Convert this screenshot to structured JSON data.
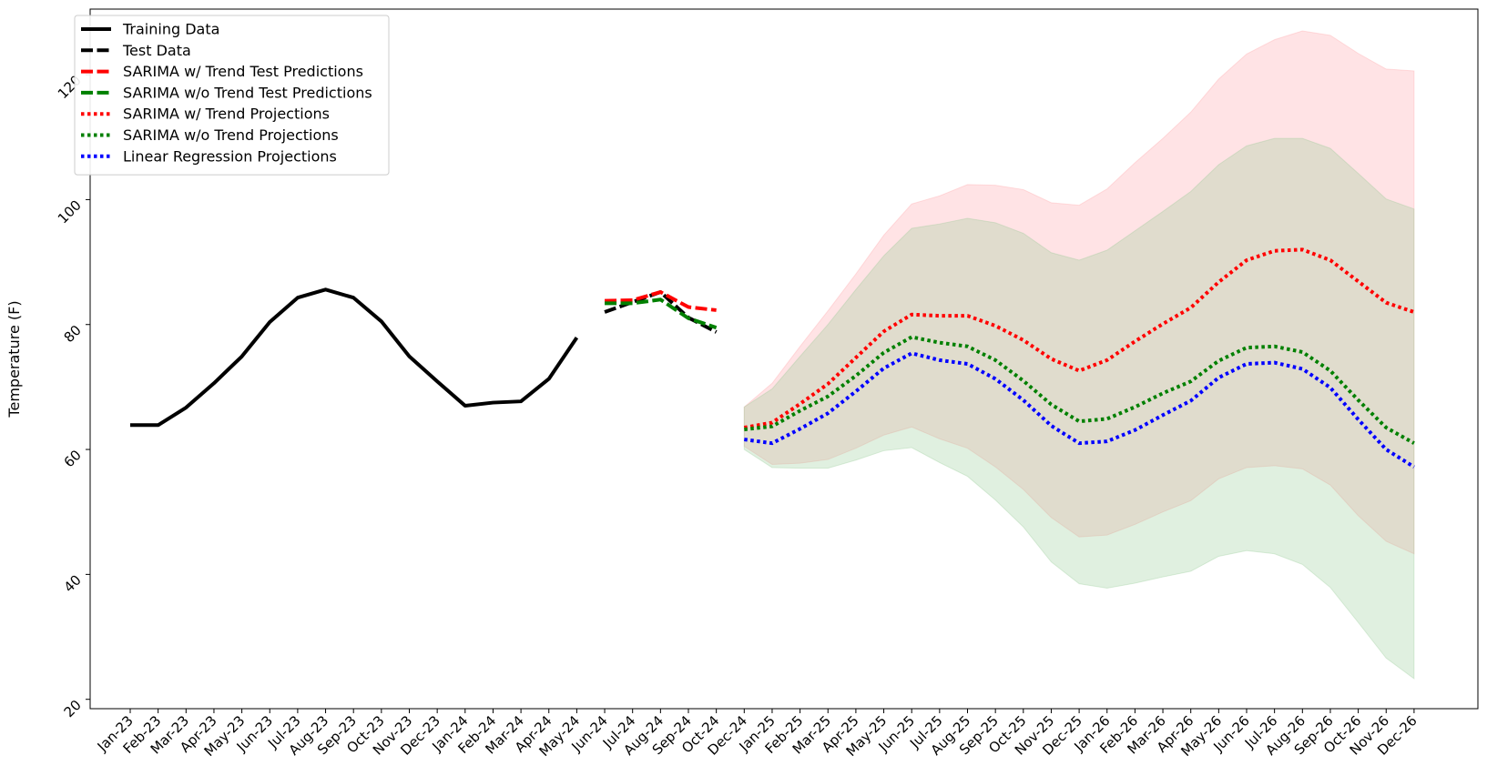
{
  "chart_data": {
    "type": "line",
    "title": "",
    "xlabel": "",
    "ylabel": "Temperature (F)",
    "ylim": [
      18.5,
      130.5
    ],
    "yticks": [
      20,
      40,
      60,
      80,
      100,
      120
    ],
    "grid": false,
    "legend_position": "top-left",
    "x_ticks": [
      "Jan-23",
      "Feb-23",
      "Mar-23",
      "Apr-23",
      "May-23",
      "Jun-23",
      "Jul-23",
      "Aug-23",
      "Sep-23",
      "Oct-23",
      "Nov-23",
      "Dec-23",
      "Jan-24",
      "Feb-24",
      "Mar-24",
      "Apr-24",
      "May-24",
      "Jun-24",
      "Jul-24",
      "Aug-24",
      "Sep-24",
      "Oct-24",
      "Dec-24",
      "Jan-25",
      "Feb-25",
      "Mar-25",
      "Apr-25",
      "May-25",
      "Jun-25",
      "Jul-25",
      "Aug-25",
      "Sep-25",
      "Oct-25",
      "Nov-25",
      "Dec-25",
      "Jan-26",
      "Feb-26",
      "Mar-26",
      "Apr-26",
      "May-26",
      "Jun-26",
      "Jul-26",
      "Aug-26",
      "Sep-26",
      "Oct-26",
      "Nov-26",
      "Dec-26"
    ],
    "series": [
      {
        "name": "Training Data",
        "color": "#000000",
        "style": "solid",
        "x": [
          "Jan-23",
          "Feb-23",
          "Mar-23",
          "Apr-23",
          "May-23",
          "Jun-23",
          "Jul-23",
          "Aug-23",
          "Sep-23",
          "Oct-23",
          "Nov-23",
          "Dec-23",
          "Jan-24",
          "Feb-24",
          "Mar-24",
          "Apr-24",
          "May-24"
        ],
        "values": [
          63.9,
          63.9,
          66.7,
          70.6,
          74.9,
          80.4,
          84.3,
          85.6,
          84.3,
          80.5,
          74.9,
          70.9,
          67.0,
          67.5,
          67.7,
          71.3,
          77.9
        ]
      },
      {
        "name": "Test Data",
        "color": "#000000",
        "style": "dashed",
        "x": [
          "Jun-24",
          "Jul-24",
          "Aug-24",
          "Sep-24",
          "Oct-24"
        ],
        "values": [
          82.0,
          83.6,
          85.2,
          81.1,
          78.8
        ]
      },
      {
        "name": "SARIMA w/ Trend Test Predictions",
        "color": "#ff0000",
        "style": "dashed",
        "x": [
          "Jun-24",
          "Jul-24",
          "Aug-24",
          "Sep-24",
          "Oct-24"
        ],
        "values": [
          83.8,
          83.9,
          85.2,
          82.8,
          82.3
        ]
      },
      {
        "name": "SARIMA w/o Trend Test Predictions",
        "color": "#008000",
        "style": "dashed",
        "x": [
          "Jun-24",
          "Jul-24",
          "Aug-24",
          "Sep-24",
          "Oct-24"
        ],
        "values": [
          83.4,
          83.4,
          84.0,
          81.0,
          79.5
        ]
      },
      {
        "name": "SARIMA w/ Trend Projections",
        "color": "#ff0000",
        "style": "dotted",
        "x": [
          "Dec-24",
          "Jan-25",
          "Feb-25",
          "Mar-25",
          "Apr-25",
          "May-25",
          "Jun-25",
          "Jul-25",
          "Aug-25",
          "Sep-25",
          "Oct-25",
          "Nov-25",
          "Dec-25",
          "Jan-26",
          "Feb-26",
          "Mar-26",
          "Apr-26",
          "May-26",
          "Jun-26",
          "Jul-26",
          "Aug-26",
          "Sep-26",
          "Oct-26",
          "Nov-26",
          "Dec-26"
        ],
        "values": [
          63.5,
          64.3,
          67.3,
          70.5,
          74.7,
          78.9,
          81.6,
          81.4,
          81.4,
          79.8,
          77.5,
          74.5,
          72.6,
          74.3,
          77.3,
          80.1,
          82.7,
          86.8,
          90.3,
          91.8,
          92.0,
          90.3,
          86.9,
          83.5,
          82.0
        ],
        "ci_color": "#ff9aa0",
        "ci_lower": [
          60.5,
          57.6,
          57.8,
          58.4,
          60.2,
          62.3,
          63.6,
          61.7,
          60.2,
          57.2,
          53.6,
          49.1,
          46.0,
          46.3,
          48.0,
          50.0,
          51.8,
          55.3,
          57.1,
          57.4,
          56.9,
          54.3,
          49.4,
          45.3,
          43.3
        ],
        "ci_upper": [
          66.8,
          70.6,
          76.5,
          82.2,
          88.1,
          94.3,
          99.3,
          100.6,
          102.4,
          102.3,
          101.6,
          99.5,
          99.1,
          101.7,
          105.9,
          109.8,
          114.0,
          119.3,
          123.3,
          125.6,
          127.0,
          126.3,
          123.4,
          120.9,
          120.6
        ]
      },
      {
        "name": "SARIMA w/o Trend Projections",
        "color": "#008000",
        "style": "dotted",
        "x": [
          "Dec-24",
          "Jan-25",
          "Feb-25",
          "Mar-25",
          "Apr-25",
          "May-25",
          "Jun-25",
          "Jul-25",
          "Aug-25",
          "Sep-25",
          "Oct-25",
          "Nov-25",
          "Dec-25",
          "Jan-26",
          "Feb-26",
          "Mar-26",
          "Apr-26",
          "May-26",
          "Jun-26",
          "Jul-26",
          "Aug-26",
          "Sep-26",
          "Oct-26",
          "Nov-26",
          "Dec-26"
        ],
        "values": [
          63.2,
          63.7,
          66.2,
          68.5,
          71.8,
          75.5,
          78.0,
          77.1,
          76.5,
          74.3,
          71.0,
          67.2,
          64.5,
          64.9,
          66.8,
          69.0,
          70.9,
          74.2,
          76.3,
          76.5,
          75.6,
          72.6,
          67.9,
          63.5,
          61.0
        ],
        "ci_color": "#90c890",
        "ci_lower": [
          60.0,
          57.1,
          57.0,
          57.0,
          58.3,
          59.8,
          60.3,
          57.9,
          55.7,
          51.9,
          47.6,
          42.0,
          38.5,
          37.8,
          38.6,
          39.6,
          40.5,
          42.9,
          43.8,
          43.3,
          41.6,
          37.9,
          32.3,
          26.6,
          23.3
        ],
        "ci_upper": [
          66.8,
          69.7,
          74.9,
          80.0,
          85.6,
          91.0,
          95.4,
          96.1,
          97.0,
          96.3,
          94.6,
          91.5,
          90.3,
          91.9,
          95.0,
          98.1,
          101.3,
          105.6,
          108.6,
          109.8,
          109.8,
          108.2,
          104.2,
          100.1,
          98.5
        ]
      },
      {
        "name": "Linear Regression Projections",
        "color": "#0000ff",
        "style": "dotted",
        "x": [
          "Dec-24",
          "Jan-25",
          "Feb-25",
          "Mar-25",
          "Apr-25",
          "May-25",
          "Jun-25",
          "Jul-25",
          "Aug-25",
          "Sep-25",
          "Oct-25",
          "Nov-25",
          "Dec-25",
          "Jan-26",
          "Feb-26",
          "Mar-26",
          "Apr-26",
          "May-26",
          "Jun-26",
          "Jul-26",
          "Aug-26",
          "Sep-26",
          "Oct-26",
          "Nov-26",
          "Dec-26"
        ],
        "values": [
          61.6,
          61.0,
          63.3,
          65.8,
          69.3,
          73.0,
          75.4,
          74.3,
          73.7,
          71.3,
          67.9,
          63.8,
          61.0,
          61.3,
          63.1,
          65.5,
          67.8,
          71.5,
          73.7,
          73.9,
          72.9,
          69.9,
          64.8,
          60.0,
          57.2
        ]
      }
    ],
    "legend": [
      {
        "label": "Training Data",
        "color": "#000000",
        "style": "solid"
      },
      {
        "label": "Test Data",
        "color": "#000000",
        "style": "dashed"
      },
      {
        "label": "SARIMA w/ Trend Test Predictions",
        "color": "#ff0000",
        "style": "dashed"
      },
      {
        "label": "SARIMA w/o Trend Test Predictions",
        "color": "#008000",
        "style": "dashed"
      },
      {
        "label": "SARIMA w/ Trend Projections",
        "color": "#ff0000",
        "style": "dotted"
      },
      {
        "label": "SARIMA w/o Trend Projections",
        "color": "#008000",
        "style": "dotted"
      },
      {
        "label": "Linear Regression Projections",
        "color": "#0000ff",
        "style": "dotted"
      }
    ]
  }
}
